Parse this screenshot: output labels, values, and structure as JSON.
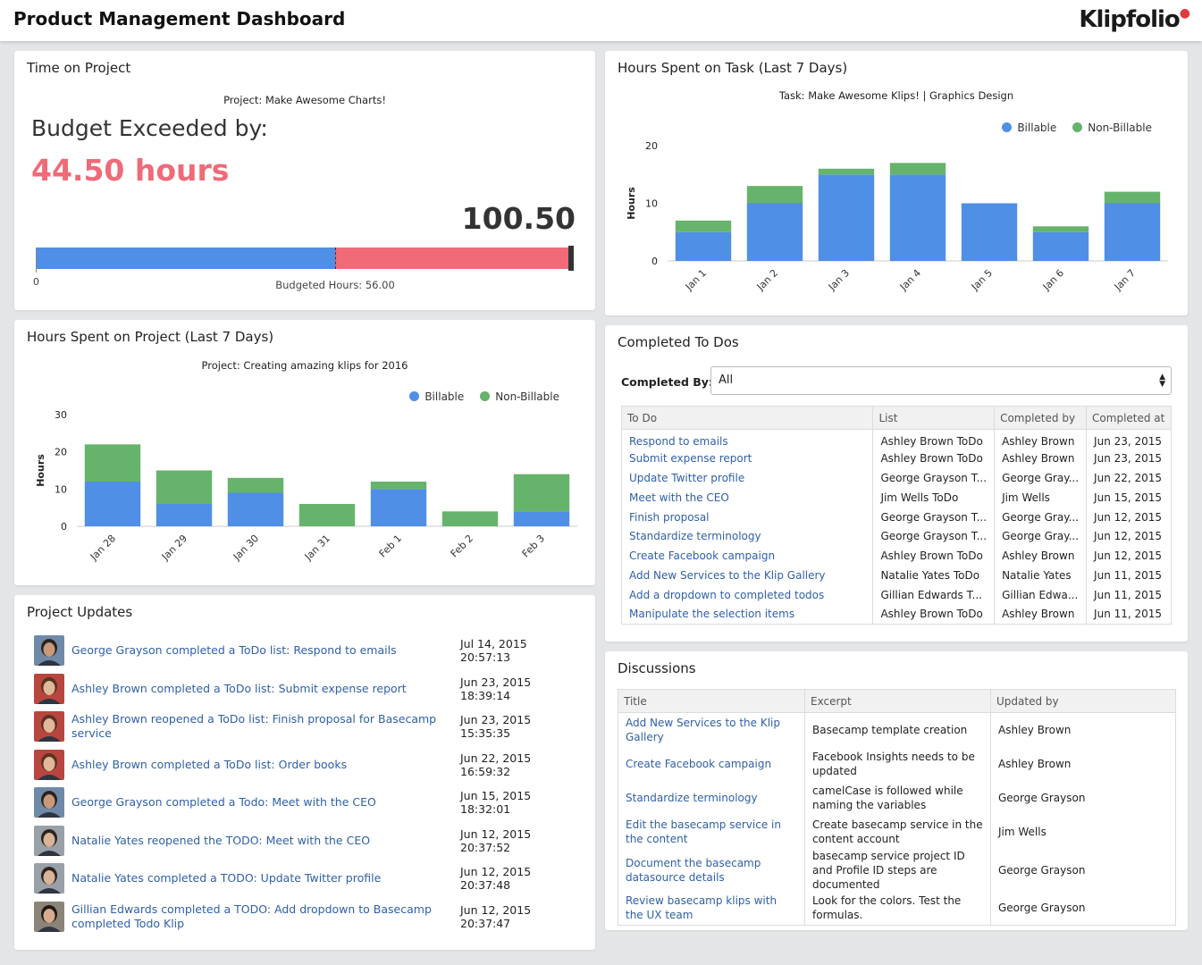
{
  "header": {
    "title": "Product Management Dashboard",
    "logo": "Klipfolio"
  },
  "time_on_project": {
    "title": "Time on Project",
    "project": "Project: Make Awesome Charts!",
    "heading": "Budget Exceeded by:",
    "exceeded": "44.50 hours",
    "total": "100.50",
    "budget_fraction": 0.557,
    "axis_start": "0",
    "budget_label": "Budgeted Hours: 56.00",
    "colors": {
      "budget": "#4f8fe6",
      "over": "#f06a78",
      "end": "#333333"
    }
  },
  "hours_on_task": {
    "title": "Hours Spent on Task (Last 7 Days)",
    "subtitle": "Task: Make Awesome Klips! | Graphics Design",
    "legend": [
      "Billable",
      "Non-Billable"
    ],
    "colors": [
      "#4f8fe6",
      "#66b36b"
    ]
  },
  "hours_on_project": {
    "title": "Hours Spent on Project (Last 7 Days)",
    "subtitle": "Project: Creating amazing klips for 2016",
    "legend": [
      "Billable",
      "Non-Billable"
    ],
    "colors": [
      "#4f8fe6",
      "#66b36b"
    ]
  },
  "chart_data": [
    {
      "type": "bar",
      "stacked": true,
      "title": "Hours Spent on Task (Last 7 Days)",
      "ylabel": "Hours",
      "ylim": [
        0,
        20
      ],
      "yticks": [
        0,
        10,
        20
      ],
      "categories": [
        "Jan 1",
        "Jan 2",
        "Jan 3",
        "Jan 4",
        "Jan 5",
        "Jan 6",
        "Jan 7"
      ],
      "series": [
        {
          "name": "Billable",
          "values": [
            5,
            10,
            15,
            15,
            10,
            5,
            10
          ]
        },
        {
          "name": "Non-Billable",
          "values": [
            2,
            3,
            1,
            2,
            0,
            1,
            2
          ]
        }
      ]
    },
    {
      "type": "bar",
      "stacked": true,
      "title": "Hours Spent on Project (Last 7 Days)",
      "ylabel": "Hours",
      "ylim": [
        0,
        30
      ],
      "yticks": [
        0,
        10,
        20,
        30
      ],
      "categories": [
        "Jan 28",
        "Jan 29",
        "Jan 30",
        "Jan 31",
        "Feb 1",
        "Feb 2",
        "Feb 3"
      ],
      "series": [
        {
          "name": "Billable",
          "values": [
            12,
            6,
            9,
            0,
            10,
            0,
            4
          ]
        },
        {
          "name": "Non-Billable",
          "values": [
            10,
            9,
            4,
            6,
            2,
            4,
            10
          ]
        }
      ]
    }
  ],
  "todos": {
    "title": "Completed To Dos",
    "filter_label": "Completed By:",
    "filter_value": "All",
    "columns": [
      "To Do",
      "List",
      "Completed by",
      "Completed at"
    ],
    "rows": [
      [
        "Respond to emails",
        "Ashley Brown ToDo",
        "Ashley Brown",
        "Jun 23, 2015"
      ],
      [
        "Submit expense report",
        "Ashley Brown ToDo",
        "Ashley Brown",
        "Jun 23, 2015"
      ],
      [
        "Update Twitter profile",
        "George Grayson T...",
        "George Gray...",
        "Jun 22, 2015"
      ],
      [
        "Meet with the CEO",
        "Jim Wells ToDo",
        "Jim Wells",
        "Jun 15, 2015"
      ],
      [
        "Finish proposal",
        "George Grayson T...",
        "George Gray...",
        "Jun 12, 2015"
      ],
      [
        "Standardize terminology",
        "George Grayson T...",
        "George Gray...",
        "Jun 12, 2015"
      ],
      [
        "Create Facebook campaign",
        "Ashley Brown ToDo",
        "Ashley Brown",
        "Jun 12, 2015"
      ],
      [
        "Add New Services to the Klip Gallery",
        "Natalie Yates ToDo",
        "Natalie Yates",
        "Jun 11, 2015"
      ],
      [
        "Add a dropdown to completed todos",
        "Gillian Edwards T...",
        "Gillian Edwa...",
        "Jun 11, 2015"
      ],
      [
        "Manipulate the selection items",
        "Ashley Brown ToDo",
        "Ashley Brown",
        "Jun 11, 2015"
      ]
    ]
  },
  "updates": {
    "title": "Project Updates",
    "items": [
      {
        "text": "George Grayson completed a ToDo list: Respond to emails",
        "time": "Jul 14, 2015 20:57:13",
        "avatar": "george"
      },
      {
        "text": "Ashley Brown completed a ToDo list: Submit expense report",
        "time": "Jun 23, 2015 18:39:14",
        "avatar": "ashley"
      },
      {
        "text": "Ashley Brown reopened a ToDo list: Finish proposal for Basecamp service",
        "time": "Jun 23, 2015 15:35:35",
        "avatar": "ashley"
      },
      {
        "text": "Ashley Brown completed a ToDo list: Order books",
        "time": "Jun 22, 2015 16:59:32",
        "avatar": "ashley"
      },
      {
        "text": "George Grayson completed a Todo: Meet with the CEO",
        "time": "Jun 15, 2015 18:32:01",
        "avatar": "george"
      },
      {
        "text": "Natalie Yates reopened the TODO: Meet with the CEO",
        "time": "Jun 12, 2015 20:37:52",
        "avatar": "natalie"
      },
      {
        "text": "Natalie Yates completed a TODO: Update Twitter profile",
        "time": "Jun 12, 2015 20:37:48",
        "avatar": "natalie"
      },
      {
        "text": "Gillian Edwards completed a TODO: Add dropdown to Basecamp completed Todo Klip",
        "time": "Jun 12, 2015 20:37:47",
        "avatar": "gillian"
      }
    ]
  },
  "discussions": {
    "title": "Discussions",
    "columns": [
      "Title",
      "Excerpt",
      "Updated by"
    ],
    "rows": [
      [
        "Add New Services to the Klip Gallery",
        "Basecamp template creation",
        "Ashley Brown"
      ],
      [
        "Create Facebook campaign",
        "Facebook Insights needs to be updated",
        "Ashley Brown"
      ],
      [
        "Standardize terminology",
        "camelCase is followed while naming the variables",
        "George Grayson"
      ],
      [
        "Edit the basecamp service in the content",
        "Create basecamp service in the content account",
        "Jim Wells"
      ],
      [
        "Document the basecamp datasource details",
        "basecamp service project ID and Profile ID steps are documented",
        "George Grayson"
      ],
      [
        "Review basecamp klips with the UX team",
        "Look for the colors. Test the formulas.",
        "George Grayson"
      ]
    ]
  },
  "avatar_colors": {
    "george": {
      "bg": "#6f8aa8",
      "skin": "#c89a7a",
      "hair": "#2a2320"
    },
    "ashley": {
      "bg": "#b8463e",
      "skin": "#e2b89a",
      "hair": "#5a3322"
    },
    "natalie": {
      "bg": "#9aa0a8",
      "skin": "#d9b39a",
      "hair": "#2b2420"
    },
    "gillian": {
      "bg": "#8c8478",
      "skin": "#d6ab8f",
      "hair": "#1f1a18"
    }
  }
}
